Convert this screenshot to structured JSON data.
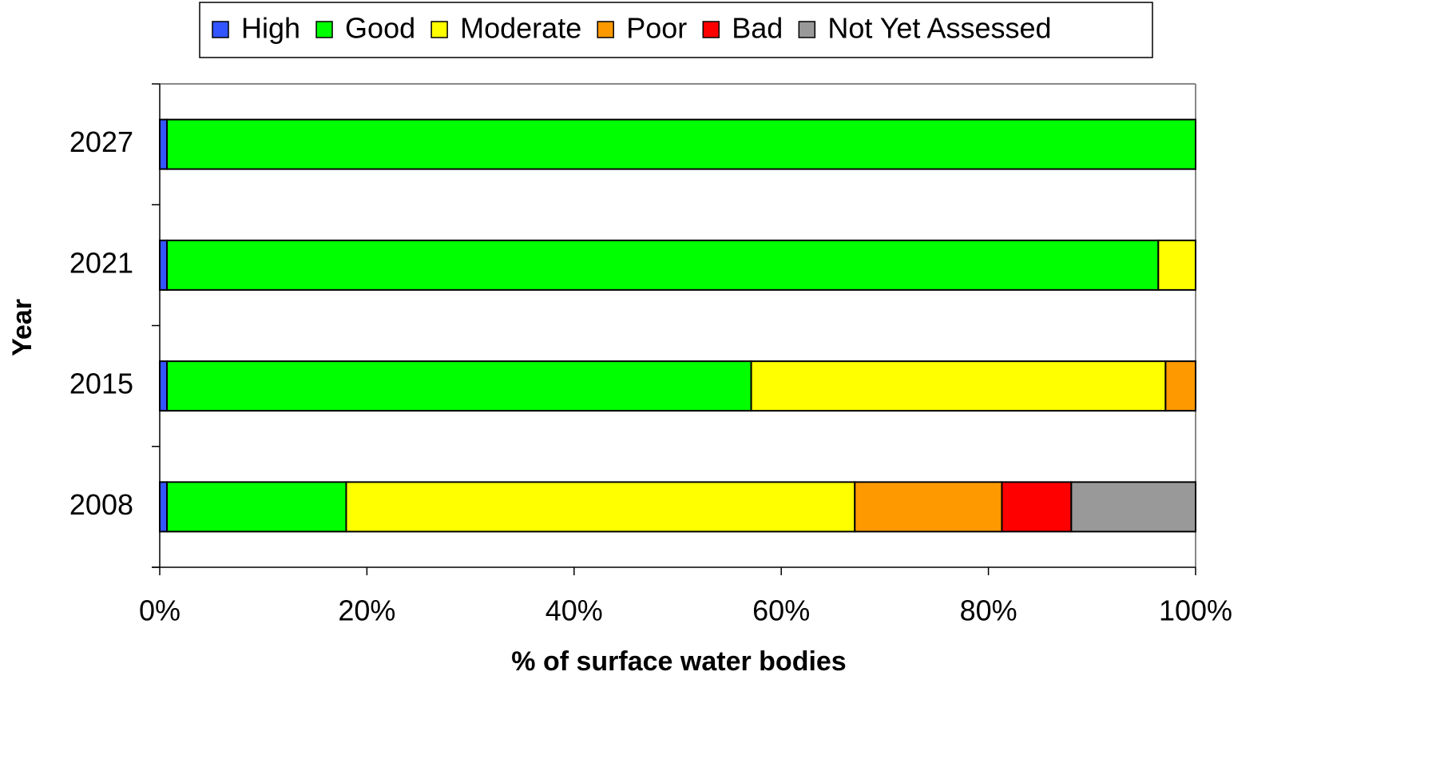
{
  "chart_data": {
    "type": "stacked_barh",
    "xlabel": "% of surface water bodies",
    "ylabel": "Year",
    "categories": [
      "2008",
      "2015",
      "2021",
      "2027"
    ],
    "series": [
      {
        "name": "High",
        "color": "#3355ff",
        "values": [
          0.7,
          0.7,
          0.7,
          0.7
        ]
      },
      {
        "name": "Good",
        "color": "#00ff00",
        "values": [
          17.3,
          56.4,
          95.7,
          99.3
        ]
      },
      {
        "name": "Moderate",
        "color": "#ffff00",
        "values": [
          49.1,
          40.0,
          3.6,
          0
        ]
      },
      {
        "name": "Poor",
        "color": "#ff9900",
        "values": [
          14.2,
          2.9,
          0,
          0
        ]
      },
      {
        "name": "Bad",
        "color": "#ff0000",
        "values": [
          6.7,
          0,
          0,
          0
        ]
      },
      {
        "name": "Not Yet Assessed",
        "color": "#999999",
        "values": [
          12.0,
          0,
          0,
          0
        ]
      }
    ],
    "xlim": [
      0,
      100
    ],
    "xticks": [
      {
        "value": 0,
        "label": "0%"
      },
      {
        "value": 20,
        "label": "20%"
      },
      {
        "value": 40,
        "label": "40%"
      },
      {
        "value": 60,
        "label": "60%"
      },
      {
        "value": 80,
        "label": "80%"
      },
      {
        "value": 100,
        "label": "100%"
      }
    ],
    "legend": "top"
  }
}
